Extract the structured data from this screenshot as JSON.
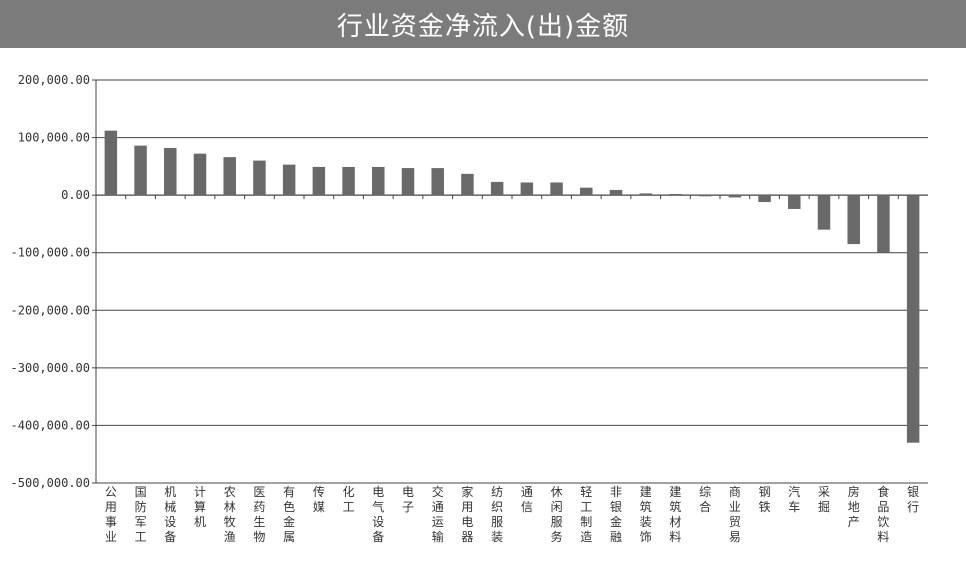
{
  "title": "行业资金净流入(出)金额",
  "colors": {
    "bar": "#696969",
    "title_bg": "#7b7b7b",
    "grid": "#444444"
  },
  "chart_data": {
    "type": "bar",
    "title": "行业资金净流入(出)金额",
    "xlabel": "",
    "ylabel": "",
    "ylim": [
      -500000,
      200000
    ],
    "yticks": [
      200000,
      100000,
      0,
      -100000,
      -200000,
      -300000,
      -400000,
      -500000
    ],
    "ytick_labels": [
      "200,000.00",
      "100,000.00",
      "0.00",
      "-100,000.00",
      "-200,000.00",
      "-300,000.00",
      "-400,000.00",
      "-500,000.00"
    ],
    "grid": true,
    "categories": [
      "公用事业",
      "国防军工",
      "机械设备",
      "计算机",
      "农林牧渔",
      "医药生物",
      "有色金属",
      "传媒",
      "化工",
      "电气设备",
      "电子",
      "交通运输",
      "家用电器",
      "纺织服装",
      "通信",
      "休闲服务",
      "轻工制造",
      "非银金融",
      "建筑装饰",
      "建筑材料",
      "综合",
      "商业贸易",
      "钢铁",
      "汽车",
      "采掘",
      "房地产",
      "食品饮料",
      "银行"
    ],
    "values": [
      112000,
      86000,
      82000,
      72000,
      66000,
      60000,
      53000,
      49000,
      49000,
      49000,
      47000,
      47000,
      37000,
      23000,
      22000,
      22000,
      13000,
      9000,
      3000,
      2000,
      -2000,
      -4000,
      -12000,
      -24000,
      -60000,
      -85000,
      -100000,
      -430000
    ]
  }
}
